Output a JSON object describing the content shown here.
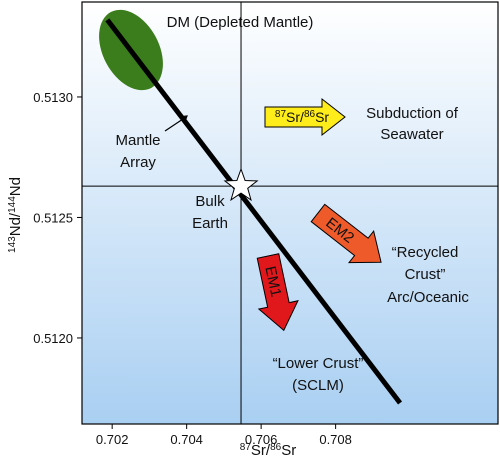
{
  "chart_data": {
    "type": "line",
    "x_label": [
      "87",
      "Sr/",
      "86",
      "Sr"
    ],
    "y_label": [
      "143",
      "Nd/",
      "144",
      "Nd"
    ],
    "xlim": [
      0.70119,
      0.71236
    ],
    "ylim": [
      0.511643,
      0.513394
    ],
    "xticks": [
      0.702,
      0.704,
      0.706,
      0.708
    ],
    "yticks": [
      {
        "value": 0.513,
        "label": "0.5130"
      },
      {
        "value": 0.5125,
        "label": "0.5125"
      },
      {
        "value": 0.512,
        "label": "0.5120"
      }
    ],
    "mantle_array": {
      "x": [
        0.70187,
        0.70973
      ],
      "y": [
        0.51332,
        0.51173
      ]
    },
    "bulk_earth": {
      "x": 0.70546,
      "y": 0.51263
    },
    "labels": {
      "dm": "DM (Depleted Mantle)",
      "mantle_array": [
        "Mantle",
        "Array"
      ],
      "bulk_earth": [
        "Bulk",
        "Earth"
      ],
      "subduction": [
        "Subduction of",
        "Seawater"
      ],
      "arrow_ratio": [
        "87",
        "Sr/",
        "86",
        "Sr"
      ],
      "em2": "EM2",
      "em1": "EM1",
      "recycled": [
        "“Recycled",
        "Crust”",
        "Arc/Oceanic"
      ],
      "lower_crust": [
        "“Lower Crust”",
        "(SCLM)"
      ]
    }
  }
}
